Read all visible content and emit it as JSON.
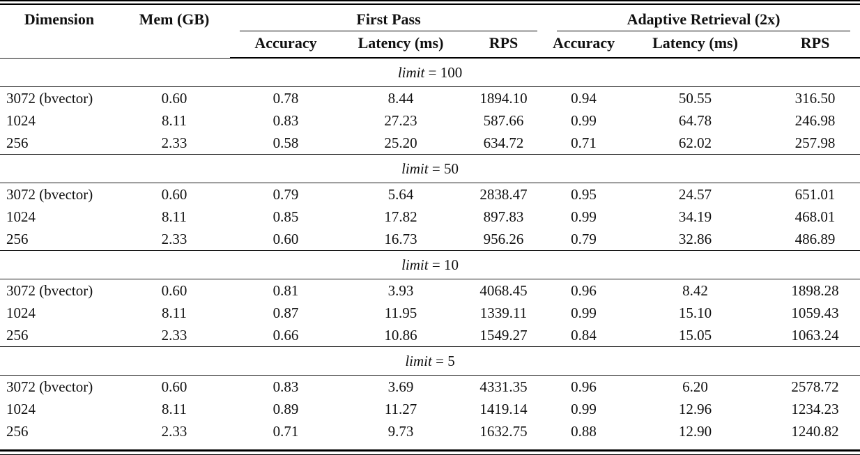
{
  "table": {
    "header": {
      "dimension": "Dimension",
      "mem": "Mem (GB)",
      "group1": "First Pass",
      "group2": "Adaptive Retrieval (2x)",
      "sub": [
        "Accuracy",
        "Latency (ms)",
        "RPS",
        "Accuracy",
        "Latency (ms)",
        "RPS"
      ]
    },
    "sections": [
      {
        "label_var": "limit",
        "label_rest": " = 100",
        "rows": [
          {
            "cells": [
              "3072 (bvector)",
              "0.60",
              "0.78",
              "8.44",
              "1894.10",
              "0.94",
              "50.55",
              "316.50"
            ]
          },
          {
            "cells": [
              "1024",
              "8.11",
              "0.83",
              "27.23",
              "587.66",
              "0.99",
              "64.78",
              "246.98"
            ]
          },
          {
            "cells": [
              "256",
              "2.33",
              "0.58",
              "25.20",
              "634.72",
              "0.71",
              "62.02",
              "257.98"
            ]
          }
        ]
      },
      {
        "label_var": "limit",
        "label_rest": " = 50",
        "rows": [
          {
            "cells": [
              "3072 (bvector)",
              "0.60",
              "0.79",
              "5.64",
              "2838.47",
              "0.95",
              "24.57",
              "651.01"
            ]
          },
          {
            "cells": [
              "1024",
              "8.11",
              "0.85",
              "17.82",
              "897.83",
              "0.99",
              "34.19",
              "468.01"
            ]
          },
          {
            "cells": [
              "256",
              "2.33",
              "0.60",
              "16.73",
              "956.26",
              "0.79",
              "32.86",
              "486.89"
            ]
          }
        ]
      },
      {
        "label_var": "limit",
        "label_rest": " = 10",
        "rows": [
          {
            "cells": [
              "3072 (bvector)",
              "0.60",
              "0.81",
              "3.93",
              "4068.45",
              "0.96",
              "8.42",
              "1898.28"
            ]
          },
          {
            "cells": [
              "1024",
              "8.11",
              "0.87",
              "11.95",
              "1339.11",
              "0.99",
              "15.10",
              "1059.43"
            ]
          },
          {
            "cells": [
              "256",
              "2.33",
              "0.66",
              "10.86",
              "1549.27",
              "0.84",
              "15.05",
              "1063.24"
            ]
          }
        ]
      },
      {
        "label_var": "limit",
        "label_rest": " = 5",
        "rows": [
          {
            "cells": [
              "3072 (bvector)",
              "0.60",
              "0.83",
              "3.69",
              "4331.35",
              "0.96",
              "6.20",
              "2578.72"
            ]
          },
          {
            "cells": [
              "1024",
              "8.11",
              "0.89",
              "11.27",
              "1419.14",
              "0.99",
              "12.96",
              "1234.23"
            ]
          },
          {
            "cells": [
              "256",
              "2.33",
              "0.71",
              "9.73",
              "1632.75",
              "0.88",
              "12.90",
              "1240.82"
            ]
          }
        ]
      }
    ]
  }
}
